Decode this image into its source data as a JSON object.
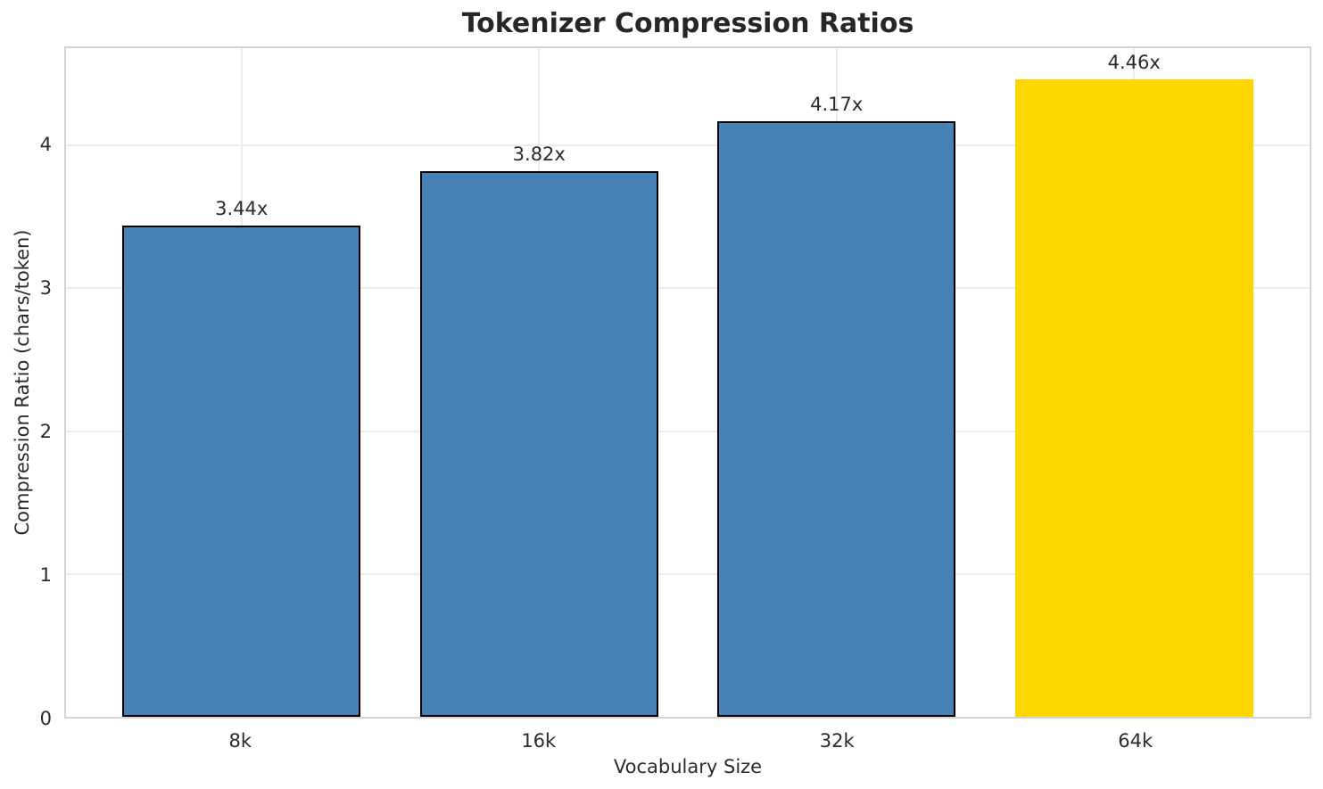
{
  "colors": {
    "background": "#ffffff",
    "grid": "#ececec",
    "spine": "#d4d4d4",
    "title_text": "#262626",
    "tick_text": "#2b2b2b",
    "bar_blue": "#4682B4",
    "bar_gold": "#FFD700",
    "bar_edge": "#000000"
  },
  "chart_data": {
    "type": "bar",
    "title": "Tokenizer Compression Ratios",
    "xlabel": "Vocabulary Size",
    "ylabel": "Compression Ratio (chars/token)",
    "categories": [
      "8k",
      "16k",
      "32k",
      "64k"
    ],
    "values": [
      3.44,
      3.82,
      4.17,
      4.46
    ],
    "bar_labels": [
      "3.44x",
      "3.82x",
      "4.17x",
      "4.46x"
    ],
    "bar_colors": [
      "#4682B4",
      "#4682B4",
      "#4682B4",
      "#FFD700"
    ],
    "bar_edge_colors": [
      "#000000",
      "#000000",
      "#000000",
      "none"
    ],
    "highlight_index": 3,
    "ylim": [
      0,
      4.68
    ],
    "yticks": [
      0,
      1,
      2,
      3,
      4
    ],
    "grid": true,
    "legend": "none"
  }
}
